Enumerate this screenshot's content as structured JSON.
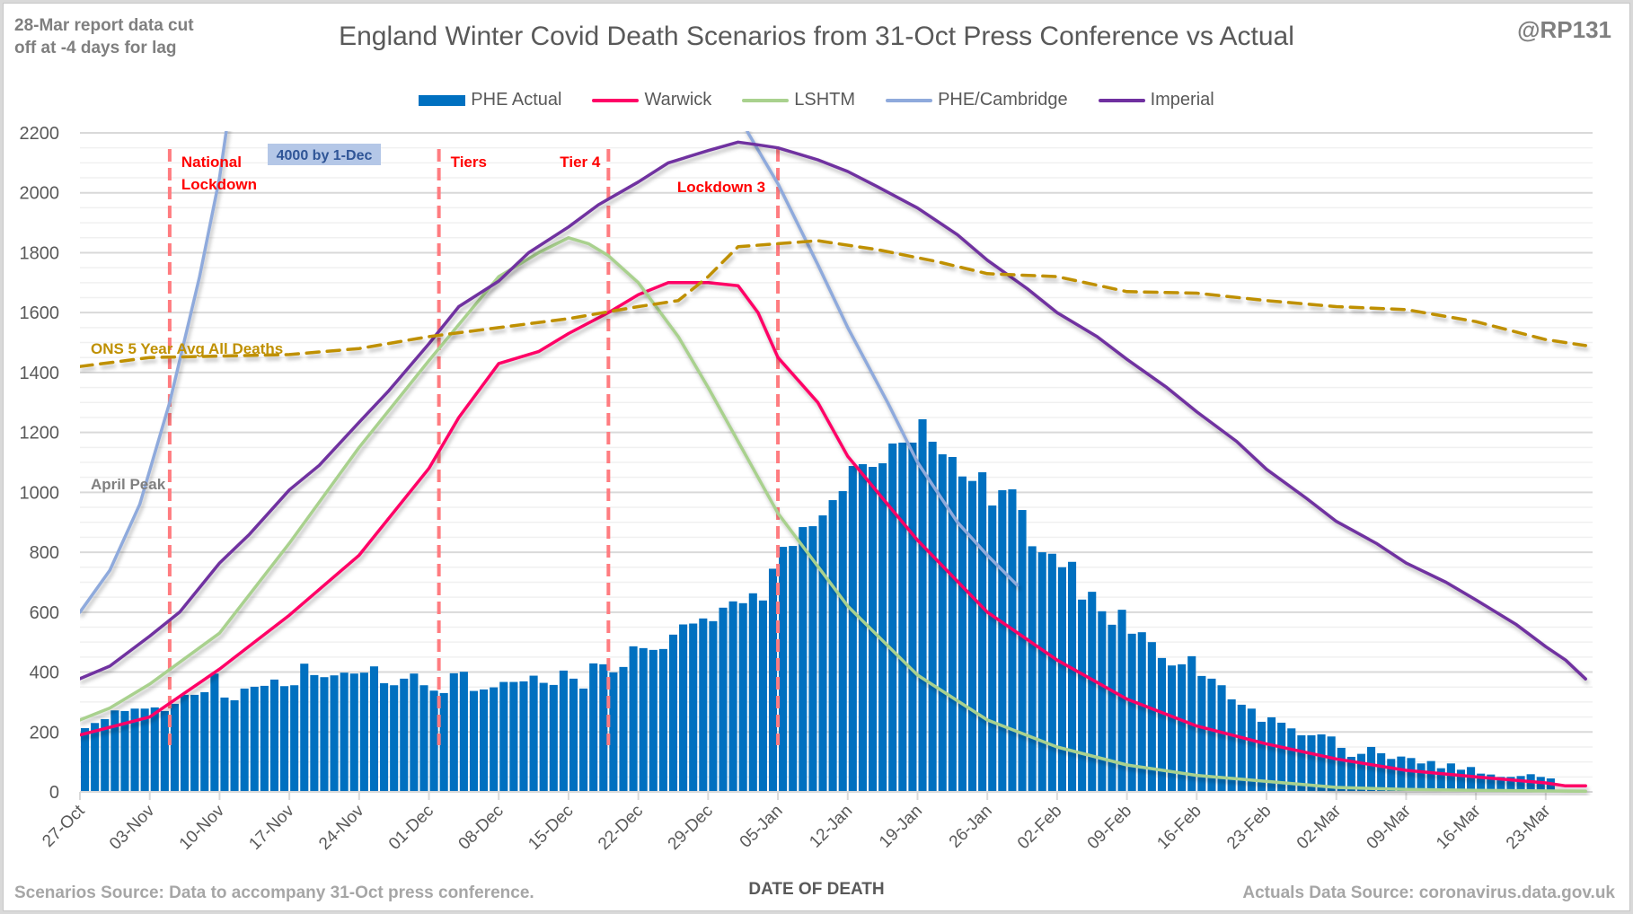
{
  "header": {
    "note": "28-Mar report data cut\noff at -4 days for lag",
    "title": "England Winter Covid Death Scenarios from 31-Oct Press Conference vs Actual",
    "handle": "@RP131"
  },
  "footer": {
    "source_left": "Scenarios Source: Data to accompany 31-Oct press conference.",
    "source_right": "Actuals Data Source: coronavirus.data.gov.uk"
  },
  "colors": {
    "actual": "#0070c0",
    "warwick": "#ff0066",
    "lshtm": "#a9d18e",
    "phe_cambridge": "#8faadc",
    "imperial": "#7030a0",
    "ons": "#bf9000",
    "april_peak": "#808080",
    "event_line": "#ff7c80"
  },
  "chart_data": {
    "type": "bar",
    "title": "England Winter Covid Death Scenarios from 31-Oct Press Conference vs Actual",
    "xlabel": "DATE OF DEATH",
    "ylabel": "",
    "ylim": [
      0,
      2200
    ],
    "yticks": [
      0,
      200,
      400,
      600,
      800,
      1000,
      1200,
      1400,
      1600,
      1800,
      2000,
      2200
    ],
    "grid": true,
    "legend_position": "top",
    "x_start_date": "27-Oct",
    "x_days_span": 151.7,
    "xticks": [
      {
        "day": 0,
        "label": "27-Oct"
      },
      {
        "day": 7,
        "label": "03-Nov"
      },
      {
        "day": 14,
        "label": "10-Nov"
      },
      {
        "day": 21,
        "label": "17-Nov"
      },
      {
        "day": 28,
        "label": "24-Nov"
      },
      {
        "day": 35,
        "label": "01-Dec"
      },
      {
        "day": 42,
        "label": "08-Dec"
      },
      {
        "day": 49,
        "label": "15-Dec"
      },
      {
        "day": 56,
        "label": "22-Dec"
      },
      {
        "day": 63,
        "label": "29-Dec"
      },
      {
        "day": 70,
        "label": "05-Jan"
      },
      {
        "day": 77,
        "label": "12-Jan"
      },
      {
        "day": 84,
        "label": "19-Jan"
      },
      {
        "day": 91,
        "label": "26-Jan"
      },
      {
        "day": 98,
        "label": "02-Feb"
      },
      {
        "day": 105,
        "label": "09-Feb"
      },
      {
        "day": 112,
        "label": "16-Feb"
      },
      {
        "day": 119,
        "label": "23-Feb"
      },
      {
        "day": 126,
        "label": "02-Mar"
      },
      {
        "day": 133,
        "label": "09-Mar"
      },
      {
        "day": 140,
        "label": "16-Mar"
      },
      {
        "day": 147,
        "label": "23-Mar"
      }
    ],
    "legend": [
      "PHE Actual",
      "Warwick",
      "LSHTM",
      "PHE/Cambridge",
      "Imperial"
    ],
    "bars": {
      "name": "PHE Actual",
      "values": [
        213,
        230,
        243,
        272,
        270,
        278,
        278,
        282,
        270,
        294,
        324,
        324,
        333,
        395,
        315,
        306,
        345,
        351,
        354,
        375,
        353,
        356,
        428,
        390,
        383,
        389,
        398,
        395,
        398,
        419,
        363,
        356,
        378,
        395,
        356,
        338,
        330,
        396,
        401,
        337,
        342,
        349,
        367,
        367,
        369,
        388,
        364,
        357,
        405,
        378,
        345,
        429,
        426,
        399,
        417,
        486,
        480,
        474,
        477,
        525,
        559,
        562,
        579,
        570,
        615,
        636,
        630,
        663,
        639,
        745,
        818,
        821,
        884,
        887,
        923,
        974,
        1004,
        1088,
        1094,
        1085,
        1097,
        1163,
        1166,
        1166,
        1244,
        1169,
        1127,
        1118,
        1053,
        1038,
        1067,
        956,
        1007,
        1010,
        941,
        820,
        800,
        795,
        750,
        768,
        642,
        668,
        603,
        558,
        608,
        528,
        533,
        500,
        447,
        422,
        426,
        453,
        387,
        378,
        356,
        309,
        291,
        278,
        234,
        249,
        231,
        212,
        189,
        189,
        192,
        185,
        147,
        117,
        127,
        150,
        129,
        110,
        118,
        113,
        95,
        103,
        79,
        95,
        74,
        83,
        61,
        58,
        50,
        50,
        53,
        59,
        50,
        45
      ]
    },
    "series": [
      {
        "name": "Warwick",
        "key": "warwick",
        "dashed": false,
        "points": [
          [
            0,
            190
          ],
          [
            7,
            250
          ],
          [
            14,
            410
          ],
          [
            21,
            590
          ],
          [
            28,
            790
          ],
          [
            35,
            1080
          ],
          [
            38,
            1250
          ],
          [
            42,
            1430
          ],
          [
            46,
            1470
          ],
          [
            49,
            1530
          ],
          [
            53,
            1600
          ],
          [
            56,
            1660
          ],
          [
            59,
            1700
          ],
          [
            63,
            1700
          ],
          [
            66,
            1690
          ],
          [
            68,
            1600
          ],
          [
            70,
            1450
          ],
          [
            74,
            1300
          ],
          [
            77,
            1120
          ],
          [
            84,
            840
          ],
          [
            91,
            600
          ],
          [
            98,
            440
          ],
          [
            105,
            310
          ],
          [
            112,
            220
          ],
          [
            119,
            160
          ],
          [
            126,
            110
          ],
          [
            133,
            72
          ],
          [
            140,
            50
          ],
          [
            147,
            30
          ],
          [
            149,
            20
          ],
          [
            151,
            20
          ]
        ]
      },
      {
        "name": "LSHTM",
        "key": "lshtm",
        "dashed": false,
        "points": [
          [
            0,
            240
          ],
          [
            3,
            280
          ],
          [
            7,
            360
          ],
          [
            14,
            530
          ],
          [
            21,
            830
          ],
          [
            28,
            1150
          ],
          [
            35,
            1440
          ],
          [
            40,
            1640
          ],
          [
            42,
            1720
          ],
          [
            46,
            1800
          ],
          [
            49,
            1850
          ],
          [
            51,
            1830
          ],
          [
            53,
            1790
          ],
          [
            56,
            1700
          ],
          [
            60,
            1520
          ],
          [
            63,
            1350
          ],
          [
            70,
            930
          ],
          [
            77,
            620
          ],
          [
            84,
            390
          ],
          [
            91,
            240
          ],
          [
            98,
            150
          ],
          [
            105,
            90
          ],
          [
            112,
            55
          ],
          [
            119,
            35
          ],
          [
            126,
            15
          ],
          [
            133,
            8
          ],
          [
            140,
            5
          ],
          [
            151,
            2
          ]
        ]
      },
      {
        "name": "PHE/Cambridge",
        "key": "phe_cambridge",
        "dashed": false,
        "segments": [
          [
            [
              0,
              600
            ],
            [
              3,
              740
            ],
            [
              6,
              960
            ],
            [
              9,
              1300
            ],
            [
              12,
              1720
            ],
            [
              14,
              2050
            ],
            [
              15,
              2280
            ]
          ],
          [
            [
              66,
              2280
            ],
            [
              67,
              2200
            ],
            [
              70,
              2030
            ],
            [
              74,
              1760
            ],
            [
              77,
              1550
            ],
            [
              81,
              1300
            ],
            [
              84,
              1100
            ],
            [
              88,
              900
            ],
            [
              91,
              790
            ],
            [
              94,
              690
            ]
          ]
        ]
      },
      {
        "name": "Imperial",
        "key": "imperial",
        "dashed": false,
        "points": [
          [
            0,
            378
          ],
          [
            3,
            420
          ],
          [
            7,
            520
          ],
          [
            10,
            600
          ],
          [
            14,
            764
          ],
          [
            17,
            860
          ],
          [
            21,
            1008
          ],
          [
            24,
            1090
          ],
          [
            28,
            1234
          ],
          [
            31,
            1340
          ],
          [
            35,
            1496
          ],
          [
            38,
            1620
          ],
          [
            42,
            1705
          ],
          [
            45,
            1800
          ],
          [
            49,
            1886
          ],
          [
            52,
            1960
          ],
          [
            56,
            2036
          ],
          [
            59,
            2100
          ],
          [
            63,
            2141
          ],
          [
            66,
            2169
          ],
          [
            68,
            2160
          ],
          [
            70,
            2150
          ],
          [
            74,
            2110
          ],
          [
            77,
            2071
          ],
          [
            80,
            2020
          ],
          [
            84,
            1949
          ],
          [
            88,
            1860
          ],
          [
            91,
            1775
          ],
          [
            95,
            1680
          ],
          [
            98,
            1600
          ],
          [
            102,
            1520
          ],
          [
            105,
            1444
          ],
          [
            109,
            1350
          ],
          [
            112,
            1269
          ],
          [
            116,
            1170
          ],
          [
            119,
            1077
          ],
          [
            123,
            980
          ],
          [
            126,
            903
          ],
          [
            130,
            830
          ],
          [
            133,
            764
          ],
          [
            137,
            700
          ],
          [
            140,
            641
          ],
          [
            144,
            560
          ],
          [
            147,
            485
          ],
          [
            149,
            440
          ],
          [
            151,
            377
          ]
        ]
      },
      {
        "name": "ONS 5 Year Avg All Deaths",
        "key": "ons",
        "dashed": true,
        "points": [
          [
            0,
            1420
          ],
          [
            7,
            1450
          ],
          [
            14,
            1455
          ],
          [
            21,
            1460
          ],
          [
            28,
            1480
          ],
          [
            35,
            1520
          ],
          [
            42,
            1550
          ],
          [
            49,
            1580
          ],
          [
            56,
            1620
          ],
          [
            60,
            1640
          ],
          [
            63,
            1720
          ],
          [
            66,
            1820
          ],
          [
            70,
            1830
          ],
          [
            74,
            1840
          ],
          [
            80,
            1810
          ],
          [
            86,
            1770
          ],
          [
            91,
            1730
          ],
          [
            98,
            1720
          ],
          [
            105,
            1670
          ],
          [
            112,
            1665
          ],
          [
            119,
            1640
          ],
          [
            126,
            1620
          ],
          [
            133,
            1610
          ],
          [
            140,
            1570
          ],
          [
            147,
            1510
          ],
          [
            151,
            1490
          ]
        ]
      },
      {
        "name": "April Peak",
        "key": "april_peak",
        "dashed": true,
        "points": [
          [
            0,
            975
          ],
          [
            151.7,
            975
          ]
        ]
      }
    ],
    "events": [
      {
        "day": 9,
        "label": "National\nLockdown"
      },
      {
        "day": 36,
        "label": "Tiers"
      },
      {
        "day": 53,
        "label": "Tier 4"
      },
      {
        "day": 70,
        "label": "Lockdown 3"
      }
    ],
    "annotations": {
      "phe_cambridge_note": "4000 by 1-Dec",
      "ons_label": "ONS 5 Year Avg All Deaths",
      "april_peak_label": "April Peak"
    }
  }
}
